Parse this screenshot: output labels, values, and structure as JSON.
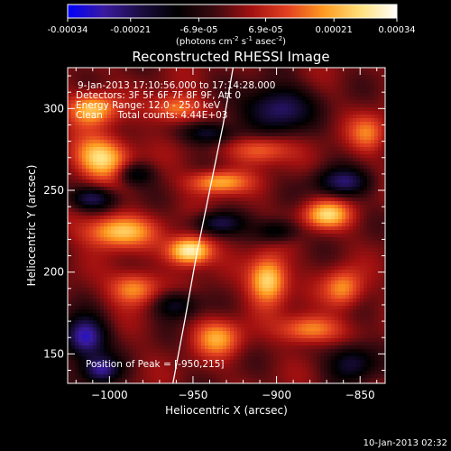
{
  "colorbar": {
    "tick_labels": [
      "-0.00034",
      "-0.00021",
      "-6.9e-05",
      "6.9e-05",
      "0.00021",
      "0.00034"
    ],
    "tick_values": [
      -0.00034,
      -0.00021,
      -6.9e-05,
      6.9e-05,
      0.00021,
      0.00034
    ],
    "range": [
      -0.00034,
      0.00034
    ],
    "units_parts": [
      "(photons cm",
      "-2",
      " s",
      "-1",
      " asec",
      "-2",
      ")"
    ],
    "stops": [
      "#0000ff",
      "#3a1aa0",
      "#1a0d40",
      "#000000",
      "#3a0a10",
      "#a01010",
      "#e24020",
      "#ff9a20",
      "#ffe07a",
      "#ffffff"
    ]
  },
  "plot": {
    "title": "Reconstructed RHESSI Image",
    "xlabel": "Heliocentric X (arcsec)",
    "ylabel": "Heliocentric Y (arcsec)",
    "annotation_lines": [
      "9-Jan-2013 17:10:56.000 to 17:14:28.000",
      "Detectors: 3F 5F 6F 7F 8F 9F, Att 0",
      "Energy Range: 12.0 - 25.0 keV",
      "Clean     Total counts: 4.44E+03"
    ],
    "peak_label": "Position of Peak = [-950,215]",
    "footer_date": "10-Jan-2013 02:32"
  },
  "chart_data": {
    "type": "heatmap",
    "title": "Reconstructed RHESSI Image",
    "xlabel": "Heliocentric X (arcsec)",
    "ylabel": "Heliocentric Y (arcsec)",
    "xlim": [
      -1025,
      -835
    ],
    "ylim": [
      132,
      325
    ],
    "x_ticks": [
      -1000,
      -950,
      -900,
      -850
    ],
    "y_ticks": [
      150,
      200,
      250,
      300
    ],
    "x_tick_labels": [
      "−1000",
      "−950",
      "−900",
      "−850"
    ],
    "y_tick_labels": [
      "150",
      "200",
      "250",
      "300"
    ],
    "peak_position": [
      -950,
      215
    ],
    "limb_curve": [
      [
        -962,
        132
      ],
      [
        -955,
        170
      ],
      [
        -948,
        210
      ],
      [
        -940,
        250
      ],
      [
        -932,
        290
      ],
      [
        -926,
        325
      ]
    ],
    "hot_spots": [
      {
        "x": -952,
        "y": 213,
        "level": 1.0,
        "sx": 9,
        "sy": 6
      },
      {
        "x": -995,
        "y": 225,
        "level": 0.75,
        "sx": 14,
        "sy": 7
      },
      {
        "x": -905,
        "y": 195,
        "level": 0.85,
        "sx": 8,
        "sy": 10
      },
      {
        "x": -1005,
        "y": 270,
        "level": 0.8,
        "sx": 12,
        "sy": 9
      },
      {
        "x": -1010,
        "y": 300,
        "level": 0.7,
        "sx": 10,
        "sy": 7
      },
      {
        "x": -870,
        "y": 235,
        "level": 0.7,
        "sx": 10,
        "sy": 6
      },
      {
        "x": -935,
        "y": 255,
        "level": 0.65,
        "sx": 12,
        "sy": 5
      },
      {
        "x": -880,
        "y": 165,
        "level": 0.6,
        "sx": 12,
        "sy": 6
      },
      {
        "x": -935,
        "y": 160,
        "level": 0.55,
        "sx": 10,
        "sy": 8
      },
      {
        "x": -985,
        "y": 190,
        "level": 0.6,
        "sx": 10,
        "sy": 7
      },
      {
        "x": -960,
        "y": 300,
        "level": 0.55,
        "sx": 10,
        "sy": 6
      },
      {
        "x": -860,
        "y": 190,
        "level": 0.55,
        "sx": 8,
        "sy": 8
      },
      {
        "x": -845,
        "y": 285,
        "level": 0.45,
        "sx": 8,
        "sy": 8
      },
      {
        "x": -910,
        "y": 275,
        "level": 0.5,
        "sx": 12,
        "sy": 6
      }
    ],
    "cold_spots": [
      {
        "x": -1015,
        "y": 160,
        "level": -0.9,
        "sx": 9,
        "sy": 9
      },
      {
        "x": -1005,
        "y": 140,
        "level": -0.7,
        "sx": 8,
        "sy": 6
      },
      {
        "x": -900,
        "y": 300,
        "level": -0.7,
        "sx": 14,
        "sy": 10
      },
      {
        "x": -860,
        "y": 255,
        "level": -0.6,
        "sx": 12,
        "sy": 6
      },
      {
        "x": -940,
        "y": 285,
        "level": -0.55,
        "sx": 10,
        "sy": 5
      },
      {
        "x": -855,
        "y": 145,
        "level": -0.55,
        "sx": 10,
        "sy": 8
      },
      {
        "x": -1010,
        "y": 245,
        "level": -0.6,
        "sx": 10,
        "sy": 5
      },
      {
        "x": -935,
        "y": 230,
        "level": -0.55,
        "sx": 10,
        "sy": 5
      },
      {
        "x": -900,
        "y": 225,
        "level": -0.45,
        "sx": 9,
        "sy": 5
      },
      {
        "x": -960,
        "y": 180,
        "level": -0.5,
        "sx": 9,
        "sy": 6
      },
      {
        "x": -985,
        "y": 260,
        "level": -0.45,
        "sx": 8,
        "sy": 5
      }
    ]
  }
}
